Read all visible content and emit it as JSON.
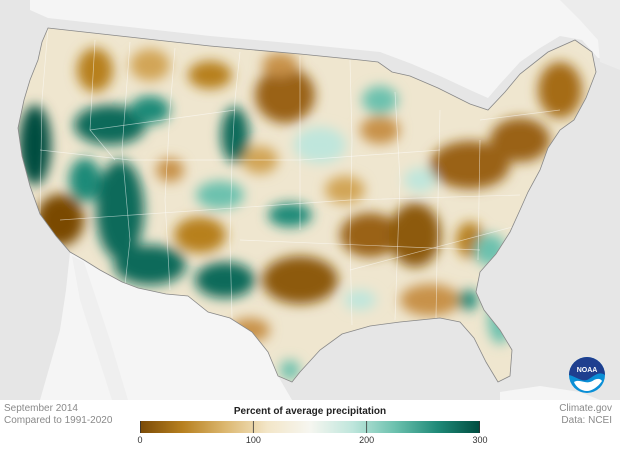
{
  "caption": {
    "date": "September 2014",
    "baseline": "Compared to 1991-2020"
  },
  "credit": {
    "source": "Climate.gov",
    "data": "Data: NCEI"
  },
  "legend": {
    "title": "Percent of average precipitation",
    "ticks": [
      "0",
      "100",
      "200",
      "300"
    ],
    "range": [
      0,
      300
    ],
    "colors": [
      "#7a4a06",
      "#b7801f",
      "#dcb76f",
      "#f3e6c8",
      "#f6f6f0",
      "#bfe6dc",
      "#6cc1ae",
      "#1f8a78",
      "#004d40"
    ]
  },
  "logo": {
    "text": "NOAA",
    "colors": [
      "#1f3f8f",
      "#0a8fd6"
    ]
  },
  "map": {
    "land_color": "#efe6cf",
    "ocean_color": "#e6e6e6",
    "neighbor_color": "#f5f5f5"
  }
}
